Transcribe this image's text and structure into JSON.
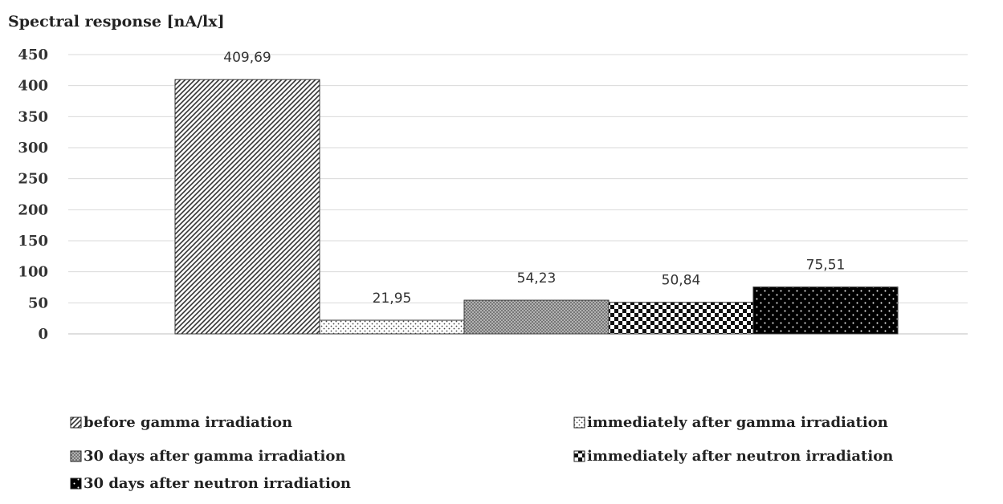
{
  "chart_data": {
    "type": "bar",
    "ylabel": "Spectral response [nA/lx]",
    "xlabel": "",
    "ylim": [
      0,
      450
    ],
    "yticks": [
      0,
      50,
      100,
      150,
      200,
      250,
      300,
      350,
      400,
      450
    ],
    "grid": true,
    "legend_position": "bottom",
    "series": [
      {
        "name": "before gamma irradiation",
        "values": [
          409.69
        ],
        "label": "409,69",
        "pattern": "diagonal-hatch"
      },
      {
        "name": "immediately after gamma irradiation",
        "values": [
          21.95
        ],
        "label": "21,95",
        "pattern": "sparse-dots"
      },
      {
        "name": "30 days after gamma irradiation",
        "values": [
          54.23
        ],
        "label": "54,23",
        "pattern": "dense-dots"
      },
      {
        "name": "immediately after neutron irradiation",
        "values": [
          50.84
        ],
        "label": "50,84",
        "pattern": "checkerboard"
      },
      {
        "name": "30 days after neutron irradiation",
        "values": [
          75.51
        ],
        "label": "75,51",
        "pattern": "black-with-white-dots"
      }
    ]
  }
}
